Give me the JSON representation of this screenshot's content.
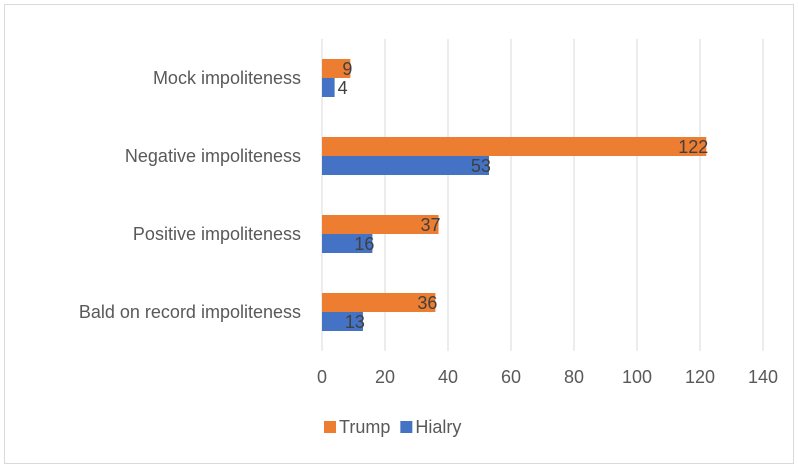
{
  "chart_data": {
    "type": "bar",
    "orientation": "horizontal",
    "categories": [
      "Mock impoliteness",
      "Negative impoliteness",
      "Positive impoliteness",
      "Bald on record impoliteness"
    ],
    "series": [
      {
        "name": "Trump",
        "values": [
          9,
          122,
          37,
          36
        ],
        "color": "#ed7d31"
      },
      {
        "name": "Hialry",
        "values": [
          4,
          53,
          16,
          13
        ],
        "color": "#4472c4"
      }
    ],
    "xlim": [
      0,
      140
    ],
    "xticks": [
      "0",
      "20",
      "40",
      "60",
      "80",
      "100",
      "120",
      "140"
    ],
    "grid": true,
    "legend": "bottom"
  }
}
